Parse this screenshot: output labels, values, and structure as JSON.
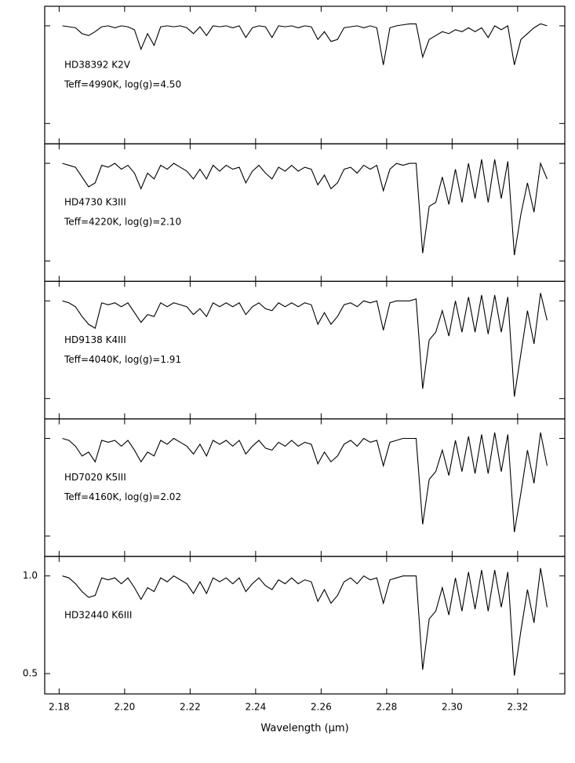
{
  "chart_data": [
    {
      "type": "line",
      "color": "#000000",
      "xlim": [
        2.1756,
        2.3344
      ],
      "ylim": [
        0.396,
        1.1
      ],
      "xticks": [
        2.18,
        2.2,
        2.22,
        2.24,
        2.26,
        2.28,
        2.3,
        2.32
      ],
      "yticks": [
        0.5,
        1
      ],
      "xtick_labels": false,
      "ytick_labels": false,
      "annotations": [
        "HD38392 K2V",
        "Teff=4990K, log(g)=4.50"
      ],
      "x": [
        2.181,
        2.183,
        2.185,
        2.187,
        2.189,
        2.191,
        2.193,
        2.195,
        2.197,
        2.199,
        2.201,
        2.203,
        2.205,
        2.207,
        2.209,
        2.211,
        2.213,
        2.215,
        2.217,
        2.219,
        2.221,
        2.223,
        2.225,
        2.227,
        2.229,
        2.231,
        2.233,
        2.235,
        2.237,
        2.239,
        2.241,
        2.243,
        2.245,
        2.247,
        2.249,
        2.251,
        2.253,
        2.255,
        2.257,
        2.259,
        2.261,
        2.263,
        2.265,
        2.267,
        2.269,
        2.271,
        2.273,
        2.275,
        2.277,
        2.279,
        2.281,
        2.283,
        2.285,
        2.287,
        2.289,
        2.291,
        2.293,
        2.295,
        2.297,
        2.299,
        2.301,
        2.303,
        2.305,
        2.307,
        2.309,
        2.311,
        2.313,
        2.315,
        2.317,
        2.319,
        2.321,
        2.323,
        2.325,
        2.327,
        2.329
      ],
      "values": [
        1.0,
        0.995,
        0.99,
        0.96,
        0.95,
        0.97,
        0.995,
        1.0,
        0.99,
        1.0,
        0.995,
        0.98,
        0.88,
        0.96,
        0.9,
        0.995,
        1.0,
        0.995,
        1.0,
        0.99,
        0.96,
        0.995,
        0.95,
        1.0,
        0.995,
        1.0,
        0.99,
        1.0,
        0.94,
        0.99,
        1.0,
        0.995,
        0.94,
        1.0,
        0.995,
        1.0,
        0.99,
        1.0,
        0.995,
        0.93,
        0.97,
        0.92,
        0.93,
        0.99,
        0.995,
        1.0,
        0.99,
        1.0,
        0.99,
        0.8,
        0.99,
        1.0,
        1.005,
        1.01,
        1.01,
        0.84,
        0.93,
        0.95,
        0.97,
        0.96,
        0.98,
        0.97,
        0.99,
        0.97,
        0.99,
        0.94,
        1.0,
        0.98,
        1.0,
        0.8,
        0.93,
        0.96,
        0.99,
        1.01,
        1.0
      ]
    },
    {
      "type": "line",
      "color": "#000000",
      "xlim": [
        2.1756,
        2.3344
      ],
      "ylim": [
        0.396,
        1.1
      ],
      "xticks": [
        2.18,
        2.2,
        2.22,
        2.24,
        2.26,
        2.28,
        2.3,
        2.32
      ],
      "yticks": [
        0.5,
        1
      ],
      "xtick_labels": false,
      "ytick_labels": false,
      "annotations": [
        "HD4730 K3III",
        "Teff=4220K, log(g)=2.10"
      ],
      "x": [
        2.181,
        2.183,
        2.185,
        2.187,
        2.189,
        2.191,
        2.193,
        2.195,
        2.197,
        2.199,
        2.201,
        2.203,
        2.205,
        2.207,
        2.209,
        2.211,
        2.213,
        2.215,
        2.217,
        2.219,
        2.221,
        2.223,
        2.225,
        2.227,
        2.229,
        2.231,
        2.233,
        2.235,
        2.237,
        2.239,
        2.241,
        2.243,
        2.245,
        2.247,
        2.249,
        2.251,
        2.253,
        2.255,
        2.257,
        2.259,
        2.261,
        2.263,
        2.265,
        2.267,
        2.269,
        2.271,
        2.273,
        2.275,
        2.277,
        2.279,
        2.281,
        2.283,
        2.285,
        2.287,
        2.289,
        2.291,
        2.293,
        2.295,
        2.297,
        2.299,
        2.301,
        2.303,
        2.305,
        2.307,
        2.309,
        2.311,
        2.313,
        2.315,
        2.317,
        2.319,
        2.321,
        2.323,
        2.325,
        2.327,
        2.329
      ],
      "values": [
        1.0,
        0.99,
        0.98,
        0.93,
        0.88,
        0.9,
        0.99,
        0.98,
        1.0,
        0.97,
        0.99,
        0.95,
        0.87,
        0.95,
        0.92,
        0.99,
        0.97,
        1.0,
        0.98,
        0.96,
        0.92,
        0.97,
        0.92,
        0.99,
        0.96,
        0.99,
        0.97,
        0.98,
        0.9,
        0.96,
        0.99,
        0.95,
        0.92,
        0.98,
        0.96,
        0.99,
        0.96,
        0.98,
        0.97,
        0.89,
        0.94,
        0.87,
        0.9,
        0.97,
        0.98,
        0.95,
        0.99,
        0.97,
        0.99,
        0.86,
        0.97,
        1.0,
        0.99,
        1.0,
        1.0,
        0.54,
        0.78,
        0.8,
        0.93,
        0.79,
        0.97,
        0.8,
        1.0,
        0.82,
        1.02,
        0.8,
        1.02,
        0.82,
        1.01,
        0.53,
        0.74,
        0.9,
        0.75,
        1.0,
        0.92
      ]
    },
    {
      "type": "line",
      "color": "#000000",
      "xlim": [
        2.1756,
        2.3344
      ],
      "ylim": [
        0.396,
        1.1
      ],
      "xticks": [
        2.18,
        2.2,
        2.22,
        2.24,
        2.26,
        2.28,
        2.3,
        2.32
      ],
      "yticks": [
        0.5,
        1
      ],
      "xtick_labels": false,
      "ytick_labels": false,
      "annotations": [
        "HD9138 K4III",
        "Teff=4040K, log(g)=1.91"
      ],
      "x": [
        2.181,
        2.183,
        2.185,
        2.187,
        2.189,
        2.191,
        2.193,
        2.195,
        2.197,
        2.199,
        2.201,
        2.203,
        2.205,
        2.207,
        2.209,
        2.211,
        2.213,
        2.215,
        2.217,
        2.219,
        2.221,
        2.223,
        2.225,
        2.227,
        2.229,
        2.231,
        2.233,
        2.235,
        2.237,
        2.239,
        2.241,
        2.243,
        2.245,
        2.247,
        2.249,
        2.251,
        2.253,
        2.255,
        2.257,
        2.259,
        2.261,
        2.263,
        2.265,
        2.267,
        2.269,
        2.271,
        2.273,
        2.275,
        2.277,
        2.279,
        2.281,
        2.283,
        2.285,
        2.287,
        2.289,
        2.291,
        2.293,
        2.295,
        2.297,
        2.299,
        2.301,
        2.303,
        2.305,
        2.307,
        2.309,
        2.311,
        2.313,
        2.315,
        2.317,
        2.319,
        2.321,
        2.323,
        2.325,
        2.327,
        2.329
      ],
      "values": [
        1.0,
        0.99,
        0.97,
        0.92,
        0.88,
        0.86,
        0.99,
        0.98,
        0.99,
        0.97,
        0.99,
        0.94,
        0.89,
        0.93,
        0.92,
        0.99,
        0.97,
        0.99,
        0.98,
        0.97,
        0.93,
        0.96,
        0.92,
        0.99,
        0.97,
        0.99,
        0.97,
        0.99,
        0.93,
        0.97,
        0.99,
        0.96,
        0.95,
        0.99,
        0.97,
        0.99,
        0.97,
        0.99,
        0.98,
        0.88,
        0.94,
        0.88,
        0.92,
        0.98,
        0.99,
        0.97,
        1.0,
        0.99,
        1.0,
        0.85,
        0.99,
        1.0,
        1.0,
        1.0,
        1.01,
        0.55,
        0.8,
        0.84,
        0.95,
        0.82,
        1.0,
        0.84,
        1.02,
        0.84,
        1.03,
        0.83,
        1.03,
        0.84,
        1.02,
        0.51,
        0.73,
        0.95,
        0.78,
        1.04,
        0.9
      ]
    },
    {
      "type": "line",
      "color": "#000000",
      "xlim": [
        2.1756,
        2.3344
      ],
      "ylim": [
        0.396,
        1.1
      ],
      "xticks": [
        2.18,
        2.2,
        2.22,
        2.24,
        2.26,
        2.28,
        2.3,
        2.32
      ],
      "yticks": [
        0.5,
        1
      ],
      "xtick_labels": false,
      "ytick_labels": false,
      "annotations": [
        "HD7020 K5III",
        "Teff=4160K, log(g)=2.02"
      ],
      "x": [
        2.181,
        2.183,
        2.185,
        2.187,
        2.189,
        2.191,
        2.193,
        2.195,
        2.197,
        2.199,
        2.201,
        2.203,
        2.205,
        2.207,
        2.209,
        2.211,
        2.213,
        2.215,
        2.217,
        2.219,
        2.221,
        2.223,
        2.225,
        2.227,
        2.229,
        2.231,
        2.233,
        2.235,
        2.237,
        2.239,
        2.241,
        2.243,
        2.245,
        2.247,
        2.249,
        2.251,
        2.253,
        2.255,
        2.257,
        2.259,
        2.261,
        2.263,
        2.265,
        2.267,
        2.269,
        2.271,
        2.273,
        2.275,
        2.277,
        2.279,
        2.281,
        2.283,
        2.285,
        2.287,
        2.289,
        2.291,
        2.293,
        2.295,
        2.297,
        2.299,
        2.301,
        2.303,
        2.305,
        2.307,
        2.309,
        2.311,
        2.313,
        2.315,
        2.317,
        2.319,
        2.321,
        2.323,
        2.325,
        2.327,
        2.329
      ],
      "values": [
        1.0,
        0.99,
        0.96,
        0.91,
        0.93,
        0.88,
        0.99,
        0.98,
        0.99,
        0.96,
        0.99,
        0.94,
        0.88,
        0.93,
        0.91,
        0.99,
        0.97,
        1.0,
        0.98,
        0.96,
        0.92,
        0.97,
        0.91,
        0.99,
        0.97,
        0.99,
        0.96,
        0.99,
        0.92,
        0.96,
        0.99,
        0.95,
        0.94,
        0.98,
        0.96,
        0.99,
        0.96,
        0.98,
        0.97,
        0.87,
        0.93,
        0.88,
        0.91,
        0.97,
        0.99,
        0.96,
        1.0,
        0.98,
        0.99,
        0.86,
        0.98,
        0.99,
        1.0,
        1.0,
        1.0,
        0.56,
        0.79,
        0.83,
        0.94,
        0.81,
        0.99,
        0.83,
        1.01,
        0.82,
        1.02,
        0.82,
        1.03,
        0.83,
        1.02,
        0.52,
        0.72,
        0.94,
        0.77,
        1.03,
        0.86
      ]
    },
    {
      "type": "line",
      "color": "#000000",
      "xlim": [
        2.1756,
        2.3344
      ],
      "ylim": [
        0.396,
        1.1
      ],
      "xticks": [
        {
          "value": 2.18,
          "label": "2.18"
        },
        {
          "value": 2.2,
          "label": "2.20"
        },
        {
          "value": 2.22,
          "label": "2.22"
        },
        {
          "value": 2.24,
          "label": "2.24"
        },
        {
          "value": 2.26,
          "label": "2.26"
        },
        {
          "value": 2.28,
          "label": "2.28"
        },
        {
          "value": 2.3,
          "label": "2.30"
        },
        {
          "value": 2.32,
          "label": "2.32"
        }
      ],
      "yticks": [
        0.5,
        {
          "value": 1,
          "label": "1.0"
        }
      ],
      "xtick_labels": true,
      "ytick_labels": true,
      "xlabel": "Wavelength (μm)",
      "annotations": [
        "HD32440 K6III"
      ],
      "x": [
        2.181,
        2.183,
        2.185,
        2.187,
        2.189,
        2.191,
        2.193,
        2.195,
        2.197,
        2.199,
        2.201,
        2.203,
        2.205,
        2.207,
        2.209,
        2.211,
        2.213,
        2.215,
        2.217,
        2.219,
        2.221,
        2.223,
        2.225,
        2.227,
        2.229,
        2.231,
        2.233,
        2.235,
        2.237,
        2.239,
        2.241,
        2.243,
        2.245,
        2.247,
        2.249,
        2.251,
        2.253,
        2.255,
        2.257,
        2.259,
        2.261,
        2.263,
        2.265,
        2.267,
        2.269,
        2.271,
        2.273,
        2.275,
        2.277,
        2.279,
        2.281,
        2.283,
        2.285,
        2.287,
        2.289,
        2.291,
        2.293,
        2.295,
        2.297,
        2.299,
        2.301,
        2.303,
        2.305,
        2.307,
        2.309,
        2.311,
        2.313,
        2.315,
        2.317,
        2.319,
        2.321,
        2.323,
        2.325,
        2.327,
        2.329
      ],
      "values": [
        1.0,
        0.99,
        0.96,
        0.92,
        0.89,
        0.9,
        0.99,
        0.98,
        0.99,
        0.96,
        0.99,
        0.94,
        0.88,
        0.94,
        0.92,
        0.99,
        0.97,
        1.0,
        0.98,
        0.96,
        0.91,
        0.97,
        0.91,
        0.99,
        0.97,
        0.99,
        0.96,
        0.99,
        0.92,
        0.96,
        0.99,
        0.95,
        0.93,
        0.98,
        0.96,
        0.99,
        0.96,
        0.98,
        0.97,
        0.87,
        0.93,
        0.86,
        0.9,
        0.97,
        0.99,
        0.96,
        1.0,
        0.98,
        0.99,
        0.86,
        0.98,
        0.99,
        1.0,
        1.0,
        1.0,
        0.52,
        0.78,
        0.82,
        0.94,
        0.8,
        0.99,
        0.82,
        1.02,
        0.83,
        1.03,
        0.82,
        1.03,
        0.84,
        1.02,
        0.49,
        0.72,
        0.93,
        0.76,
        1.04,
        0.84
      ]
    }
  ]
}
